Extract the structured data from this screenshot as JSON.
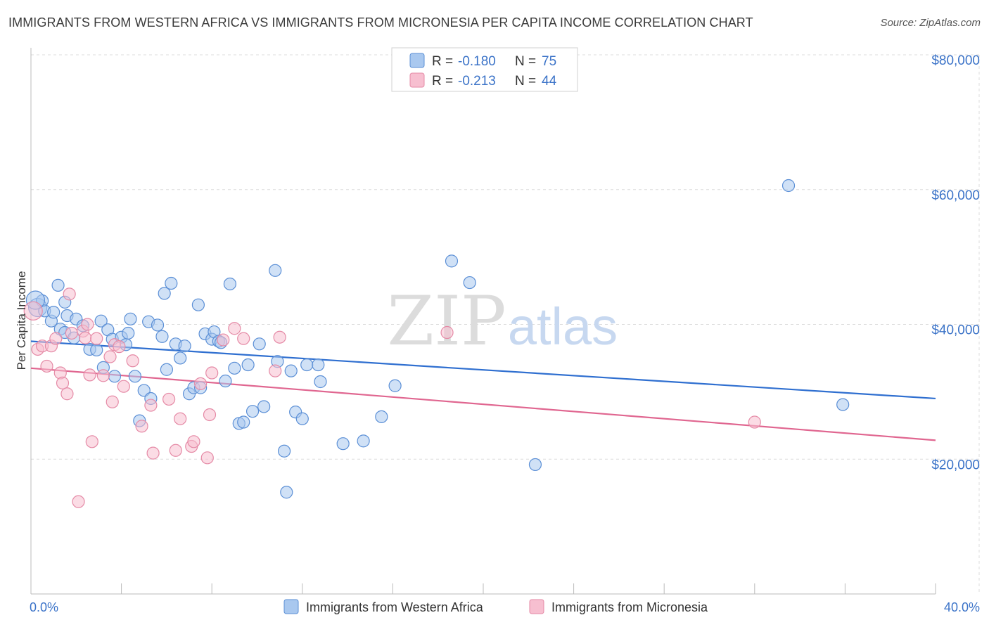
{
  "header": {
    "title": "IMMIGRANTS FROM WESTERN AFRICA VS IMMIGRANTS FROM MICRONESIA PER CAPITA INCOME CORRELATION CHART",
    "source": "Source: ZipAtlas.com"
  },
  "watermark": {
    "zip": "ZIP",
    "atlas": "atlas"
  },
  "colors": {
    "blue_fill": "#a9c8ef",
    "blue_stroke": "#5b8fd6",
    "blue_line": "#2f6fd0",
    "pink_fill": "#f7bfd0",
    "pink_stroke": "#e58aa6",
    "pink_line": "#e06690",
    "axis_text": "#3b73c8",
    "grid": "#dcdcdc"
  },
  "chart_data": {
    "type": "scatter",
    "title": "IMMIGRANTS FROM WESTERN AFRICA VS IMMIGRANTS FROM MICRONESIA PER CAPITA INCOME CORRELATION CHART",
    "xlabel": "",
    "ylabel": "Per Capita Income",
    "xlim": [
      0,
      40
    ],
    "ylim": [
      0,
      80000
    ],
    "x_tick_labels": [
      "0.0%",
      "40.0%"
    ],
    "y_ticks": [
      20000,
      40000,
      60000,
      80000
    ],
    "y_tick_labels": [
      "$20,000",
      "$40,000",
      "$60,000",
      "$80,000"
    ],
    "legend": [
      {
        "name": "Immigrants from Western Africa",
        "r_label": "R =",
        "r": "-0.180",
        "n_label": "N =",
        "n": "75"
      },
      {
        "name": "Immigrants from Micronesia",
        "r_label": "R =",
        "r": "-0.213",
        "n_label": "N =",
        "n": "44"
      }
    ],
    "series": [
      {
        "name": "Immigrants from Western Africa",
        "trend": {
          "x0": 0,
          "y0": 37500,
          "x1": 40,
          "y1": 29000
        },
        "points": [
          [
            0.3,
            42500
          ],
          [
            0.5,
            43500
          ],
          [
            0.6,
            42000
          ],
          [
            0.9,
            40500
          ],
          [
            1.0,
            41800
          ],
          [
            1.2,
            45800
          ],
          [
            1.3,
            39300
          ],
          [
            1.5,
            38800
          ],
          [
            1.5,
            43300
          ],
          [
            1.6,
            41300
          ],
          [
            1.9,
            38000
          ],
          [
            2.0,
            40800
          ],
          [
            2.3,
            39800
          ],
          [
            2.6,
            36300
          ],
          [
            2.9,
            36200
          ],
          [
            3.1,
            40500
          ],
          [
            3.2,
            33600
          ],
          [
            3.4,
            39200
          ],
          [
            3.6,
            37800
          ],
          [
            3.7,
            32300
          ],
          [
            4.0,
            38100
          ],
          [
            4.2,
            37000
          ],
          [
            4.3,
            38700
          ],
          [
            4.4,
            40800
          ],
          [
            4.6,
            32300
          ],
          [
            4.8,
            25700
          ],
          [
            5.0,
            30200
          ],
          [
            5.2,
            40400
          ],
          [
            5.3,
            29000
          ],
          [
            5.6,
            39900
          ],
          [
            5.8,
            38200
          ],
          [
            5.9,
            44600
          ],
          [
            6.0,
            33300
          ],
          [
            6.2,
            46100
          ],
          [
            6.4,
            37100
          ],
          [
            6.6,
            35000
          ],
          [
            6.8,
            36800
          ],
          [
            7.0,
            29700
          ],
          [
            7.2,
            30600
          ],
          [
            7.4,
            42900
          ],
          [
            7.5,
            30600
          ],
          [
            7.7,
            38600
          ],
          [
            8.0,
            37800
          ],
          [
            8.1,
            38900
          ],
          [
            8.3,
            37500
          ],
          [
            8.4,
            37300
          ],
          [
            8.6,
            31600
          ],
          [
            8.8,
            46000
          ],
          [
            9.0,
            33500
          ],
          [
            9.2,
            25300
          ],
          [
            9.4,
            25500
          ],
          [
            9.6,
            34000
          ],
          [
            9.8,
            27100
          ],
          [
            10.1,
            37100
          ],
          [
            10.3,
            27800
          ],
          [
            10.8,
            48000
          ],
          [
            10.9,
            34500
          ],
          [
            11.2,
            21200
          ],
          [
            11.3,
            15100
          ],
          [
            11.5,
            33100
          ],
          [
            11.7,
            27000
          ],
          [
            12.0,
            26000
          ],
          [
            12.2,
            34000
          ],
          [
            12.7,
            34000
          ],
          [
            12.8,
            31500
          ],
          [
            13.8,
            22300
          ],
          [
            14.7,
            22700
          ],
          [
            15.5,
            26300
          ],
          [
            16.1,
            30900
          ],
          [
            18.6,
            49400
          ],
          [
            19.4,
            46200
          ],
          [
            22.3,
            19200
          ],
          [
            33.5,
            60600
          ],
          [
            35.9,
            28100
          ],
          [
            0.2,
            43600
          ]
        ]
      },
      {
        "name": "Immigrants from Micronesia",
        "trend": {
          "x0": 0,
          "y0": 33500,
          "x1": 40,
          "y1": 22800
        },
        "points": [
          [
            0.3,
            36300
          ],
          [
            0.5,
            36800
          ],
          [
            0.7,
            33800
          ],
          [
            0.9,
            36800
          ],
          [
            1.1,
            37900
          ],
          [
            1.3,
            32800
          ],
          [
            1.4,
            31300
          ],
          [
            1.6,
            29700
          ],
          [
            1.7,
            44500
          ],
          [
            1.8,
            38700
          ],
          [
            2.1,
            13700
          ],
          [
            2.3,
            39000
          ],
          [
            2.4,
            38000
          ],
          [
            2.5,
            40000
          ],
          [
            2.6,
            32500
          ],
          [
            2.7,
            22600
          ],
          [
            2.9,
            37900
          ],
          [
            3.2,
            32400
          ],
          [
            3.5,
            35200
          ],
          [
            3.6,
            28500
          ],
          [
            3.7,
            37000
          ],
          [
            3.9,
            36700
          ],
          [
            4.1,
            30800
          ],
          [
            4.5,
            34600
          ],
          [
            4.9,
            24900
          ],
          [
            5.3,
            28000
          ],
          [
            5.4,
            20900
          ],
          [
            6.1,
            28900
          ],
          [
            6.4,
            21300
          ],
          [
            6.6,
            26000
          ],
          [
            7.1,
            21900
          ],
          [
            7.2,
            22600
          ],
          [
            7.5,
            31200
          ],
          [
            7.8,
            20200
          ],
          [
            7.9,
            26600
          ],
          [
            8.0,
            32800
          ],
          [
            8.5,
            37700
          ],
          [
            9.0,
            39400
          ],
          [
            9.4,
            37900
          ],
          [
            10.8,
            33100
          ],
          [
            11.0,
            38100
          ],
          [
            18.4,
            38800
          ],
          [
            32.0,
            25500
          ],
          [
            0.1,
            42000
          ]
        ]
      }
    ]
  }
}
